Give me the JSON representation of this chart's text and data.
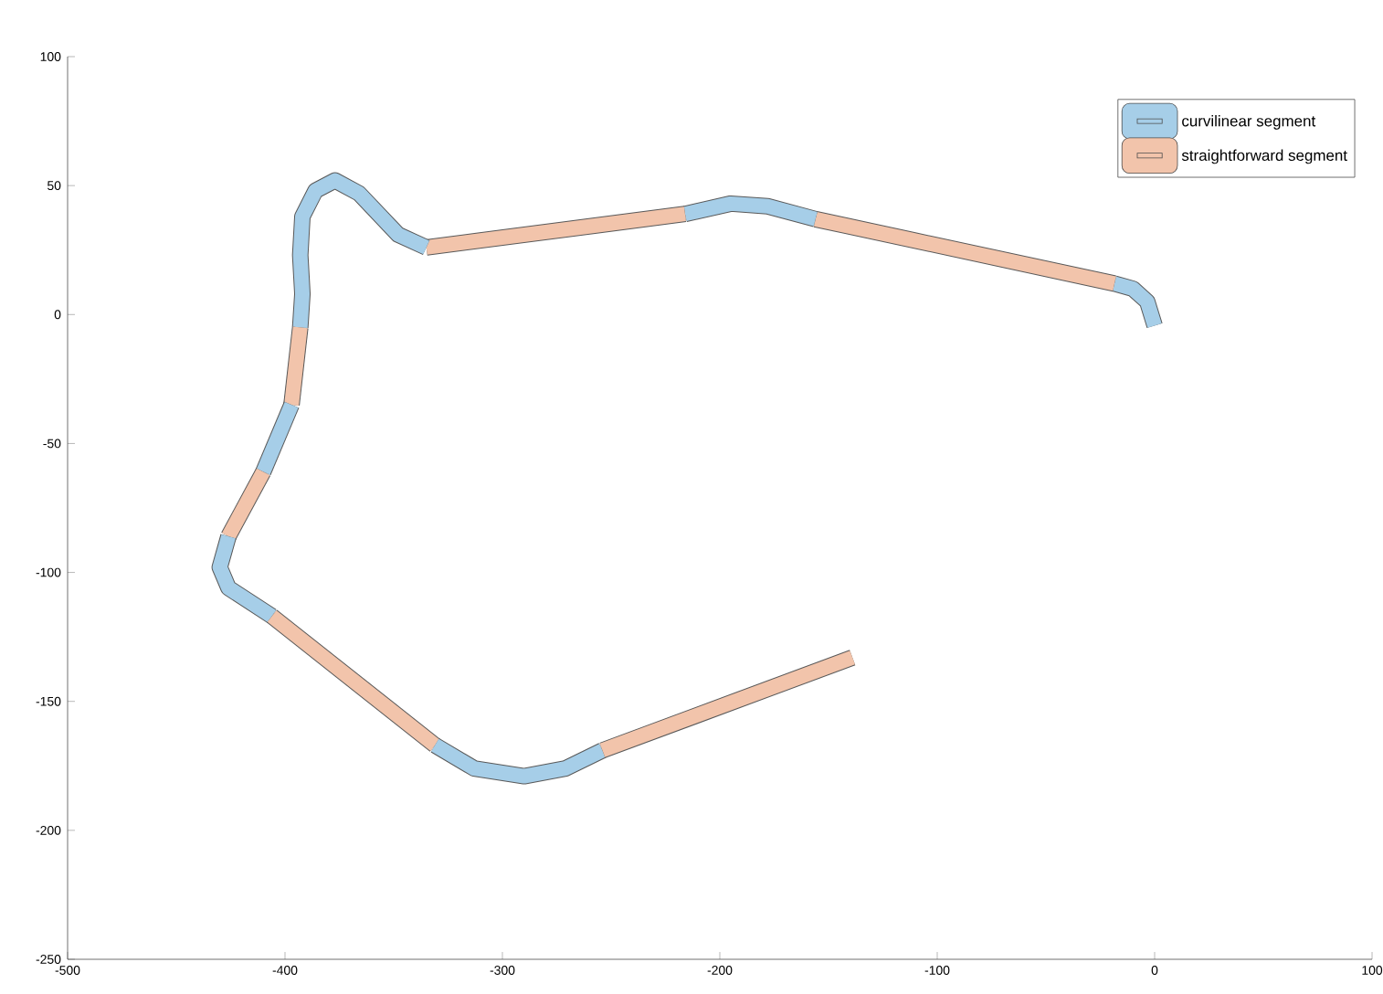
{
  "chart_data": {
    "type": "line",
    "xlim": [
      -500,
      100
    ],
    "ylim": [
      -250,
      100
    ],
    "xticks": [
      -500,
      -400,
      -300,
      -200,
      -100,
      0,
      100
    ],
    "yticks": [
      -250,
      -200,
      -150,
      -100,
      -50,
      0,
      50,
      100
    ],
    "grid": false,
    "legend": "top right",
    "series": [
      {
        "name": "curvilinear segment",
        "color": "#a6cee8",
        "x": [
          0,
          -3.4,
          -10,
          -18.5
        ],
        "values": [
          -4.3,
          5,
          10,
          12
        ]
      },
      {
        "name": "straightforward segment",
        "color": "#f2c4ab",
        "x": [
          -18.5,
          -156
        ],
        "values": [
          12,
          37
        ]
      },
      {
        "color": "#a6cee8",
        "x": [
          -156,
          -178,
          -195,
          -216
        ],
        "values": [
          37,
          42,
          43,
          39
        ]
      },
      {
        "color": "#f2c4ab",
        "x": [
          -216,
          -335
        ],
        "values": [
          39,
          26
        ]
      },
      {
        "color": "#a6cee8",
        "x": [
          -335,
          -348,
          -366,
          -377,
          -386,
          -392,
          -393,
          -392,
          -393
        ],
        "values": [
          26,
          31,
          47,
          52,
          48,
          38,
          23,
          8,
          -5
        ]
      },
      {
        "color": "#f2c4ab",
        "x": [
          -393,
          -397
        ],
        "values": [
          -5,
          -35
        ]
      },
      {
        "color": "#a6cee8",
        "x": [
          -397,
          -410
        ],
        "values": [
          -35,
          -61
        ]
      },
      {
        "color": "#f2c4ab",
        "x": [
          -410,
          -426
        ],
        "values": [
          -61,
          -86
        ]
      },
      {
        "color": "#a6cee8",
        "x": [
          -426,
          -430,
          -426,
          -406
        ],
        "values": [
          -86,
          -98,
          -106,
          -117
        ]
      },
      {
        "color": "#f2c4ab",
        "x": [
          -406,
          -331
        ],
        "values": [
          -117,
          -167
        ]
      },
      {
        "color": "#a6cee8",
        "x": [
          -331,
          -313,
          -290,
          -271,
          -254
        ],
        "values": [
          -167,
          -176,
          -179,
          -176,
          -169
        ]
      },
      {
        "color": "#f2c4ab",
        "x": [
          -254,
          -139
        ],
        "values": [
          -169,
          -133
        ]
      }
    ]
  }
}
